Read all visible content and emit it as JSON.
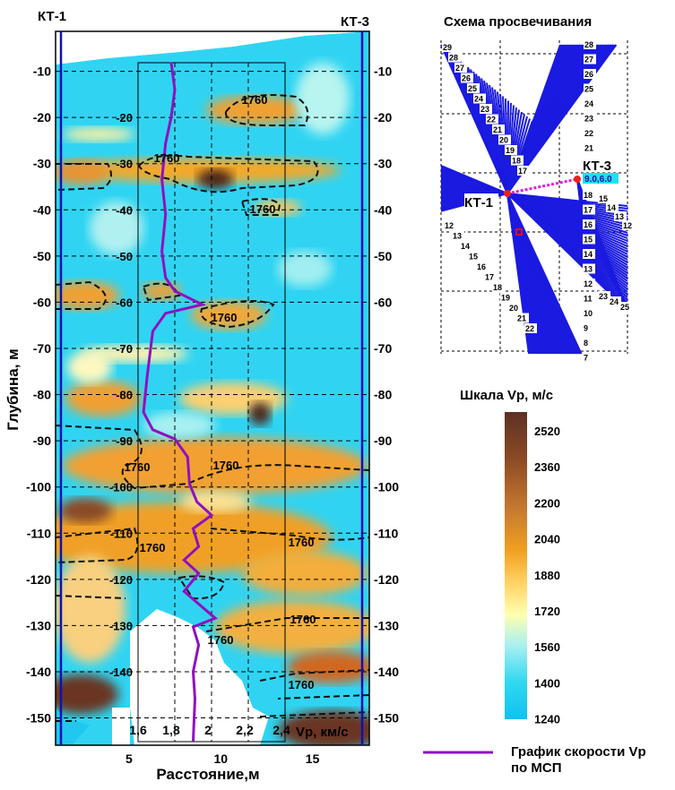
{
  "chart_data": [
    {
      "type": "heatmap",
      "title": "",
      "xlabel": "Расстояние,м",
      "ylabel": "Глубина, м",
      "xlim": [
        1,
        18.1
      ],
      "ylim": [
        -156,
        -1.4
      ],
      "x_ticks": [
        "5",
        "10",
        "15"
      ],
      "x_tick_values": [
        5,
        10,
        15
      ],
      "y_ticks": [
        "-10",
        "-20",
        "-30",
        "-40",
        "-50",
        "-60",
        "-70",
        "-80",
        "-90",
        "-100",
        "-110",
        "-120",
        "-130",
        "-140",
        "-150"
      ],
      "y_tick_values": [
        -10,
        -20,
        -30,
        -40,
        -50,
        -60,
        -70,
        -80,
        -90,
        -100,
        -110,
        -120,
        -130,
        -140,
        -150
      ],
      "inner_depth_labels": [
        "-20",
        "-30",
        "-40",
        "-50",
        "-60",
        "-70",
        "-80",
        "-90",
        "-100",
        "-110",
        "-120",
        "-130",
        "-140"
      ],
      "grid": true,
      "boreholes": [
        {
          "name": "КТ-1",
          "x": 1.3
        },
        {
          "name": "КТ-3",
          "x": 17.7
        }
      ],
      "contour_level": 1760,
      "contour_labels": [
        "1760",
        "1760",
        "1760",
        "1760",
        "1760",
        "1760",
        "1760",
        "1760",
        "1760",
        "1760"
      ],
      "colorbar": {
        "title": "Шкала Vp, м/с",
        "ticks": [
          "2520",
          "2360",
          "2200",
          "2040",
          "1880",
          "1720",
          "1560",
          "1400",
          "1240"
        ],
        "range": [
          1240,
          2600
        ],
        "colors": [
          "#6b3a2a",
          "#8a4a25",
          "#c87a30",
          "#f0a020",
          "#ffd060",
          "#ffffa0",
          "#a8f0f0",
          "#30d8f0",
          "#10c0f0"
        ]
      }
    },
    {
      "type": "line",
      "name": "График скорости Vp по МСП",
      "xlabel": "Vp, км/с",
      "x_ticks": [
        "1,6",
        "1,8",
        "2",
        "2,2",
        "2,4"
      ],
      "x_tick_values": [
        1.6,
        1.8,
        2.0,
        2.2,
        2.4
      ],
      "xlim": [
        1.6,
        2.4
      ],
      "color": "#9010c0",
      "points": [
        {
          "v": 1.78,
          "depth": -8
        },
        {
          "v": 1.8,
          "depth": -14
        },
        {
          "v": 1.78,
          "depth": -20
        },
        {
          "v": 1.75,
          "depth": -25.6
        },
        {
          "v": 1.73,
          "depth": -33.4
        },
        {
          "v": 1.75,
          "depth": -41
        },
        {
          "v": 1.73,
          "depth": -49
        },
        {
          "v": 1.75,
          "depth": -54.7
        },
        {
          "v": 1.8,
          "depth": -57.6
        },
        {
          "v": 1.95,
          "depth": -60.5
        },
        {
          "v": 1.75,
          "depth": -62.4
        },
        {
          "v": 1.68,
          "depth": -66.3
        },
        {
          "v": 1.65,
          "depth": -76
        },
        {
          "v": 1.63,
          "depth": -83.8
        },
        {
          "v": 1.68,
          "depth": -87.6
        },
        {
          "v": 1.8,
          "depth": -89.6
        },
        {
          "v": 1.87,
          "depth": -93.5
        },
        {
          "v": 1.88,
          "depth": -99.3
        },
        {
          "v": 1.92,
          "depth": -103.2
        },
        {
          "v": 2.0,
          "depth": -106.1
        },
        {
          "v": 1.9,
          "depth": -109
        },
        {
          "v": 1.93,
          "depth": -112.9
        },
        {
          "v": 1.85,
          "depth": -115.8
        },
        {
          "v": 1.93,
          "depth": -118.7
        },
        {
          "v": 1.85,
          "depth": -122.6
        },
        {
          "v": 2.02,
          "depth": -128.4
        },
        {
          "v": 1.9,
          "depth": -130.3
        },
        {
          "v": 1.93,
          "depth": -134.2
        },
        {
          "v": 1.9,
          "depth": -140
        },
        {
          "v": 1.91,
          "depth": -145.8
        },
        {
          "v": 1.9,
          "depth": -155
        }
      ]
    }
  ],
  "scheme": {
    "title": "Схема просвечивания",
    "kt1_label": "КТ-1",
    "kt3_label": "КТ-3",
    "coord_badge": "9.0,6.0",
    "left_top_numbers": [
      "29",
      "28",
      "27",
      "26",
      "25",
      "24",
      "23",
      "22",
      "21",
      "20",
      "19",
      "18",
      "17"
    ],
    "right_top_numbers": [
      "28",
      "27",
      "26",
      "25",
      "24",
      "23",
      "22",
      "21"
    ],
    "right_mid_numbers": [
      "18",
      "17",
      "16",
      "15",
      "14",
      "13",
      "12",
      "11",
      "10",
      "9",
      "8",
      "7"
    ],
    "left_bottom_numbers": [
      "12",
      "13",
      "14",
      "15",
      "16",
      "17",
      "18",
      "19",
      "20",
      "21",
      "22"
    ],
    "right_side_numbers": [
      "15",
      "14",
      "13",
      "12"
    ],
    "right_bottom_numbers": [
      "23",
      "24",
      "25"
    ]
  },
  "legend": {
    "line1": "График скорости Vp",
    "line2": "по МСП",
    "color": "#9010c0"
  }
}
